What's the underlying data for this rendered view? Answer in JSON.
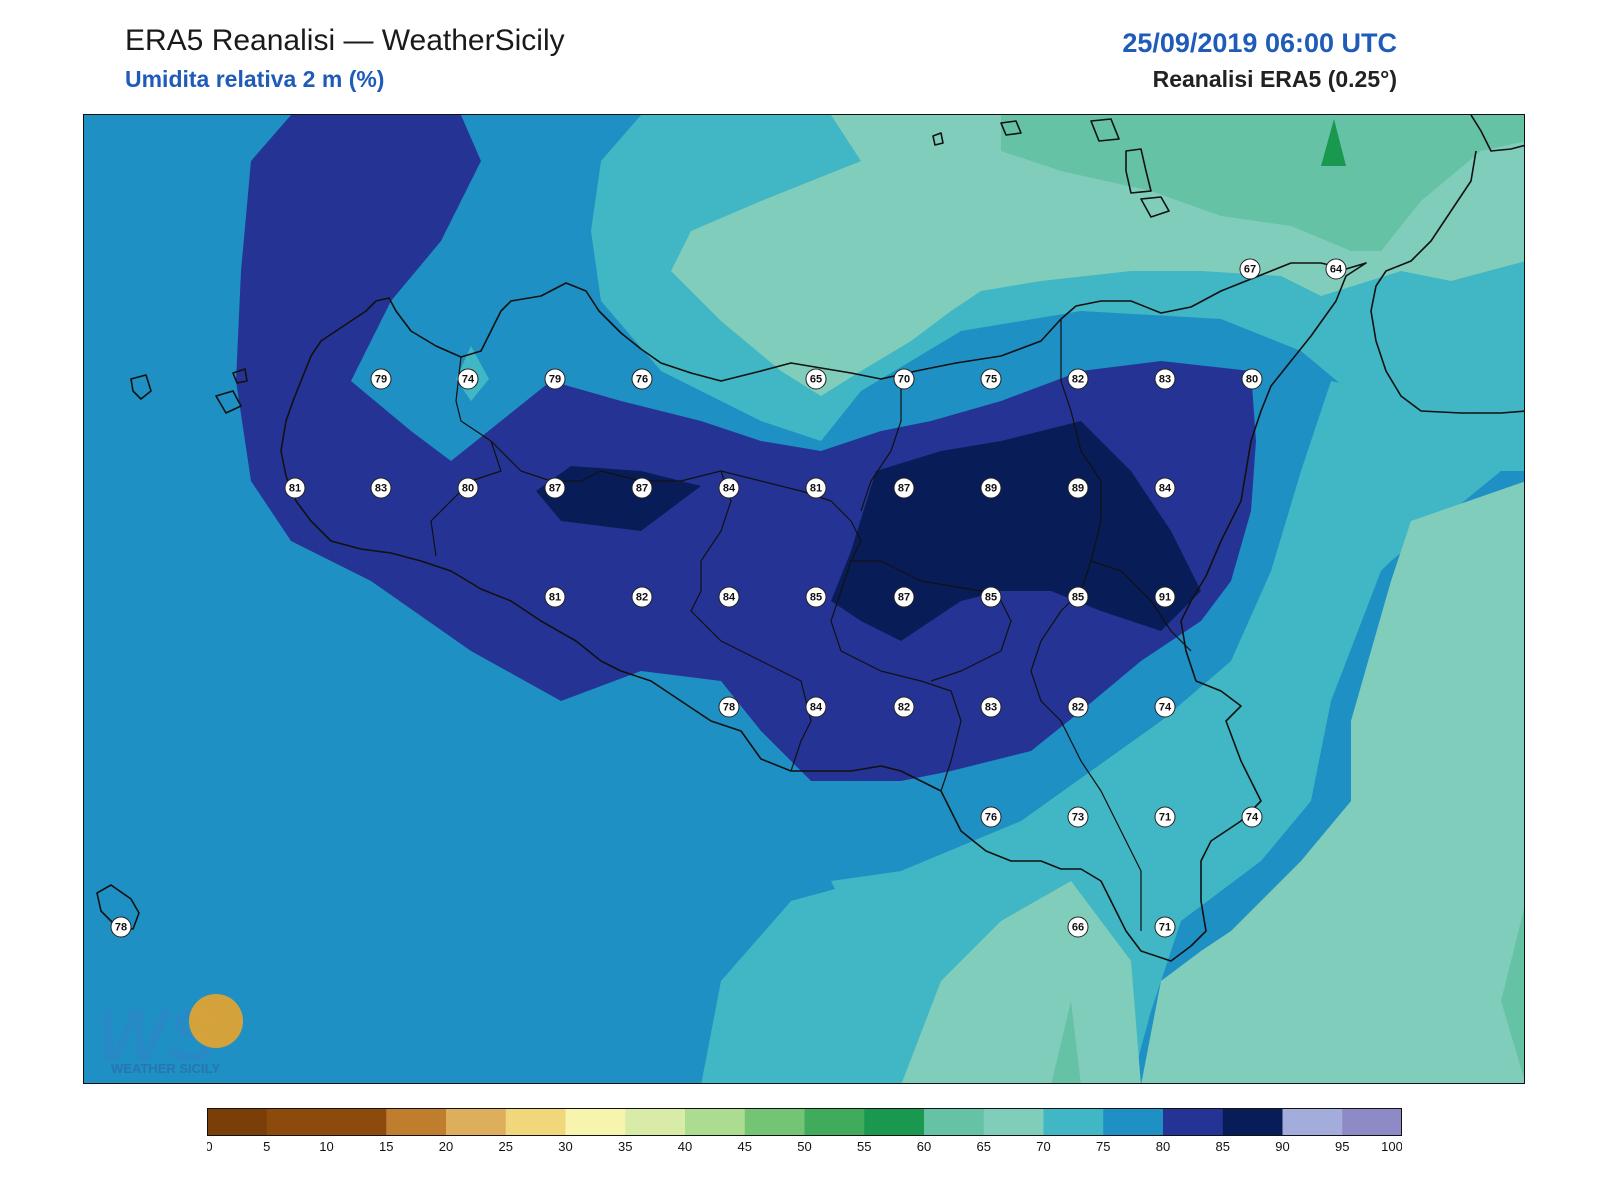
{
  "header": {
    "title": "ERA5 Reanalisi — WeatherSicily",
    "subtitle": "Umidita relativa 2 m (%)",
    "datetime": "25/09/2019 06:00 UTC",
    "source": "Reanalisi ERA5 (0.25°)"
  },
  "logo": {
    "text": "WS",
    "caption": "WEATHER SICILY"
  },
  "palette": {
    "r60_65": "#66c2a4",
    "r65_70": "#80cdbc",
    "r70_75": "#41b6c4",
    "r75_80": "#1e90c3",
    "r80_85": "#253494",
    "r85_90": "#081d58",
    "coast": "#111111"
  },
  "stations": [
    {
      "v": "67"
    },
    {
      "v": "64"
    },
    {
      "v": "79"
    },
    {
      "v": "74"
    },
    {
      "v": "79"
    },
    {
      "v": "76"
    },
    {
      "v": "65"
    },
    {
      "v": "70"
    },
    {
      "v": "75"
    },
    {
      "v": "82"
    },
    {
      "v": "83"
    },
    {
      "v": "80"
    },
    {
      "v": "81"
    },
    {
      "v": "83"
    },
    {
      "v": "80"
    },
    {
      "v": "87"
    },
    {
      "v": "87"
    },
    {
      "v": "84"
    },
    {
      "v": "81"
    },
    {
      "v": "87"
    },
    {
      "v": "89"
    },
    {
      "v": "89"
    },
    {
      "v": "84"
    },
    {
      "v": "81"
    },
    {
      "v": "82"
    },
    {
      "v": "84"
    },
    {
      "v": "85"
    },
    {
      "v": "87"
    },
    {
      "v": "85"
    },
    {
      "v": "85"
    },
    {
      "v": "91"
    },
    {
      "v": "78"
    },
    {
      "v": "84"
    },
    {
      "v": "82"
    },
    {
      "v": "83"
    },
    {
      "v": "82"
    },
    {
      "v": "74"
    },
    {
      "v": "76"
    },
    {
      "v": "73"
    },
    {
      "v": "71"
    },
    {
      "v": "74"
    },
    {
      "v": "78"
    },
    {
      "v": "66"
    },
    {
      "v": "71"
    }
  ],
  "colorbar": {
    "ticks": [
      "0",
      "5",
      "10",
      "15",
      "20",
      "25",
      "30",
      "35",
      "40",
      "45",
      "50",
      "55",
      "60",
      "65",
      "70",
      "75",
      "80",
      "85",
      "90",
      "95",
      "100"
    ],
    "colors": [
      "#7a3e08",
      "#8c4a0c",
      "#8c4a0c",
      "#bf7e2e",
      "#ddae5c",
      "#f0d77c",
      "#f7f4ad",
      "#d8eba7",
      "#acdc90",
      "#74c476",
      "#41ab5d",
      "#1a9850",
      "#66c2a4",
      "#80cdbc",
      "#41b6c4",
      "#1e90c3",
      "#253494",
      "#081d58",
      "#a4acdc",
      "#8d8ac6"
    ]
  }
}
